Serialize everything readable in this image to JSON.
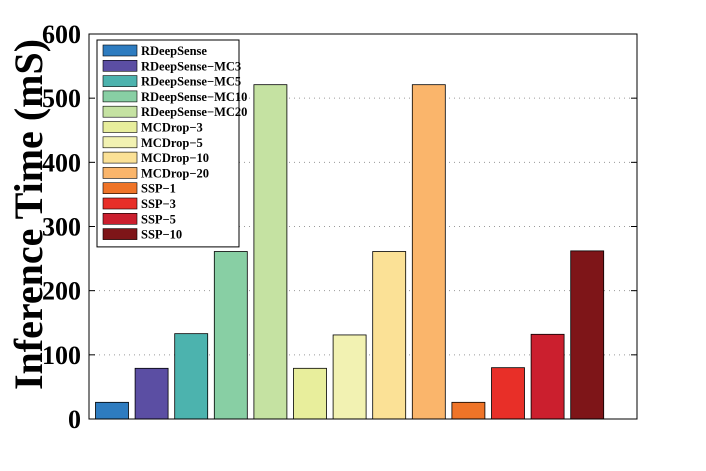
{
  "chart_data": {
    "type": "bar",
    "ylabel": "Inference Time (mS)",
    "xlabel": "",
    "title": "",
    "ylim": [
      0,
      600
    ],
    "yticks": [
      0,
      100,
      200,
      300,
      400,
      500,
      600
    ],
    "grid": "horizontal-dotted",
    "legend_position": "top-left",
    "series": [
      {
        "name": "RDeepSense",
        "value": 26,
        "color": "#2e7cc0"
      },
      {
        "name": "RDeepSense−MC3",
        "value": 79,
        "color": "#5b4ea3"
      },
      {
        "name": "RDeepSense−MC5",
        "value": 133,
        "color": "#4cb3ae"
      },
      {
        "name": "RDeepSense−MC10",
        "value": 261,
        "color": "#88cfa4"
      },
      {
        "name": "RDeepSense−MC20",
        "value": 521,
        "color": "#c5e2a2"
      },
      {
        "name": "MCDrop−3",
        "value": 79,
        "color": "#e8ee9c"
      },
      {
        "name": "MCDrop−5",
        "value": 131,
        "color": "#f2f2b2"
      },
      {
        "name": "MCDrop−10",
        "value": 261,
        "color": "#fbe196"
      },
      {
        "name": "MCDrop−20",
        "value": 521,
        "color": "#fab56b"
      },
      {
        "name": "SSP−1",
        "value": 26,
        "color": "#ef7428"
      },
      {
        "name": "SSP−3",
        "value": 80,
        "color": "#e82f28"
      },
      {
        "name": "SSP−5",
        "value": 132,
        "color": "#cb1f2e"
      },
      {
        "name": "SSP−10",
        "value": 262,
        "color": "#7e1518"
      }
    ]
  }
}
